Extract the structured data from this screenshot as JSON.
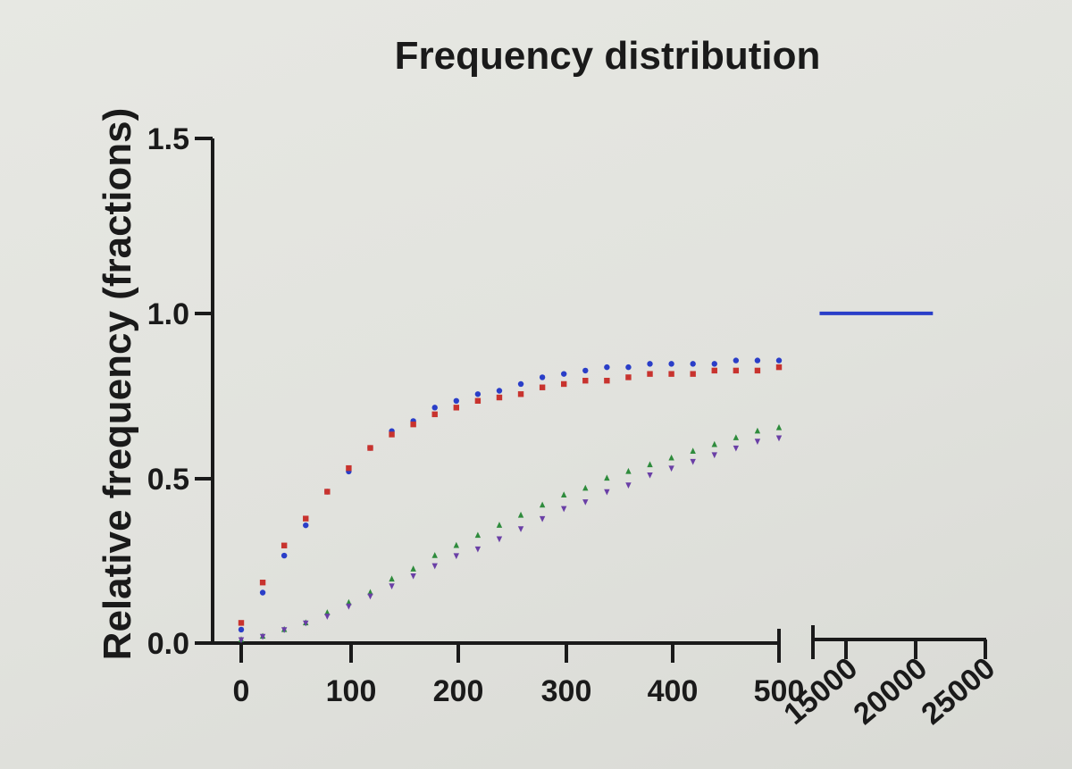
{
  "chart_data": {
    "type": "scatter",
    "title": "Frequency distribution",
    "ylabel": "Relative frequency (fractions)",
    "xlabel": "",
    "ylim": [
      0,
      1.5
    ],
    "xlim": [
      0,
      500
    ],
    "x_break_segment": {
      "xlim": [
        12000,
        25000
      ],
      "ticks": [
        "15000",
        "20000",
        "25000"
      ]
    },
    "x_ticks": [
      "0",
      "100",
      "200",
      "300",
      "400",
      "500"
    ],
    "y_ticks": [
      "0.0",
      "0.5",
      "1.0",
      "1.5"
    ],
    "legend": "none",
    "grid": false,
    "x": [
      0,
      20,
      40,
      60,
      80,
      100,
      120,
      140,
      160,
      180,
      200,
      220,
      240,
      260,
      280,
      300,
      320,
      340,
      360,
      380,
      400,
      420,
      440,
      460,
      480,
      500
    ],
    "series": [
      {
        "color": "#2a3ec8",
        "marker": "circle",
        "values": [
          0.04,
          0.15,
          0.26,
          0.35,
          0.45,
          0.51,
          0.58,
          0.63,
          0.66,
          0.7,
          0.72,
          0.74,
          0.75,
          0.77,
          0.79,
          0.8,
          0.81,
          0.82,
          0.82,
          0.83,
          0.83,
          0.83,
          0.83,
          0.84,
          0.84,
          0.84
        ],
        "tail": {
          "x": [
            12500,
            21000
          ],
          "y": [
            0.98,
            0.98
          ]
        }
      },
      {
        "color": "#c8332e",
        "marker": "square",
        "values": [
          0.06,
          0.18,
          0.29,
          0.37,
          0.45,
          0.52,
          0.58,
          0.62,
          0.65,
          0.68,
          0.7,
          0.72,
          0.73,
          0.74,
          0.76,
          0.77,
          0.78,
          0.78,
          0.79,
          0.8,
          0.8,
          0.8,
          0.81,
          0.81,
          0.81,
          0.82
        ]
      },
      {
        "color": "#2e8b3c",
        "marker": "triangle-up",
        "values": [
          0.01,
          0.02,
          0.04,
          0.06,
          0.09,
          0.12,
          0.15,
          0.19,
          0.22,
          0.26,
          0.29,
          0.32,
          0.35,
          0.38,
          0.41,
          0.44,
          0.46,
          0.49,
          0.51,
          0.53,
          0.55,
          0.57,
          0.59,
          0.61,
          0.63,
          0.64
        ]
      },
      {
        "color": "#6a3fa6",
        "marker": "triangle-down",
        "values": [
          0.01,
          0.02,
          0.04,
          0.06,
          0.08,
          0.11,
          0.14,
          0.17,
          0.2,
          0.23,
          0.26,
          0.28,
          0.31,
          0.34,
          0.37,
          0.4,
          0.42,
          0.45,
          0.47,
          0.5,
          0.52,
          0.54,
          0.56,
          0.58,
          0.6,
          0.61
        ]
      }
    ]
  }
}
